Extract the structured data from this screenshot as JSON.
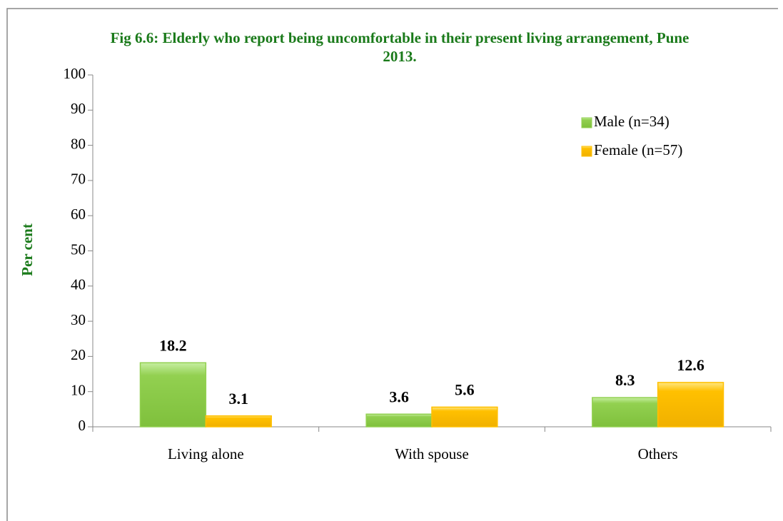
{
  "chart_data": {
    "type": "bar",
    "title": "Fig 6.6: Elderly who report being uncomfortable in their present living arrangement, Pune 2013.",
    "y_label": "Per cent",
    "categories": [
      "Living alone",
      "With spouse",
      "Others"
    ],
    "series": [
      {
        "name": "Male (n=34)",
        "color": "#92d050",
        "values": [
          18.2,
          3.6,
          8.3
        ]
      },
      {
        "name": "Female (n=57)",
        "color": "#ffc000",
        "values": [
          3.1,
          5.6,
          12.6
        ]
      }
    ],
    "ylim": [
      0,
      100
    ],
    "yticks": [
      0,
      10,
      20,
      30,
      40,
      50,
      60,
      70,
      80,
      90,
      100
    ],
    "legend": "upper right",
    "grid": false
  }
}
